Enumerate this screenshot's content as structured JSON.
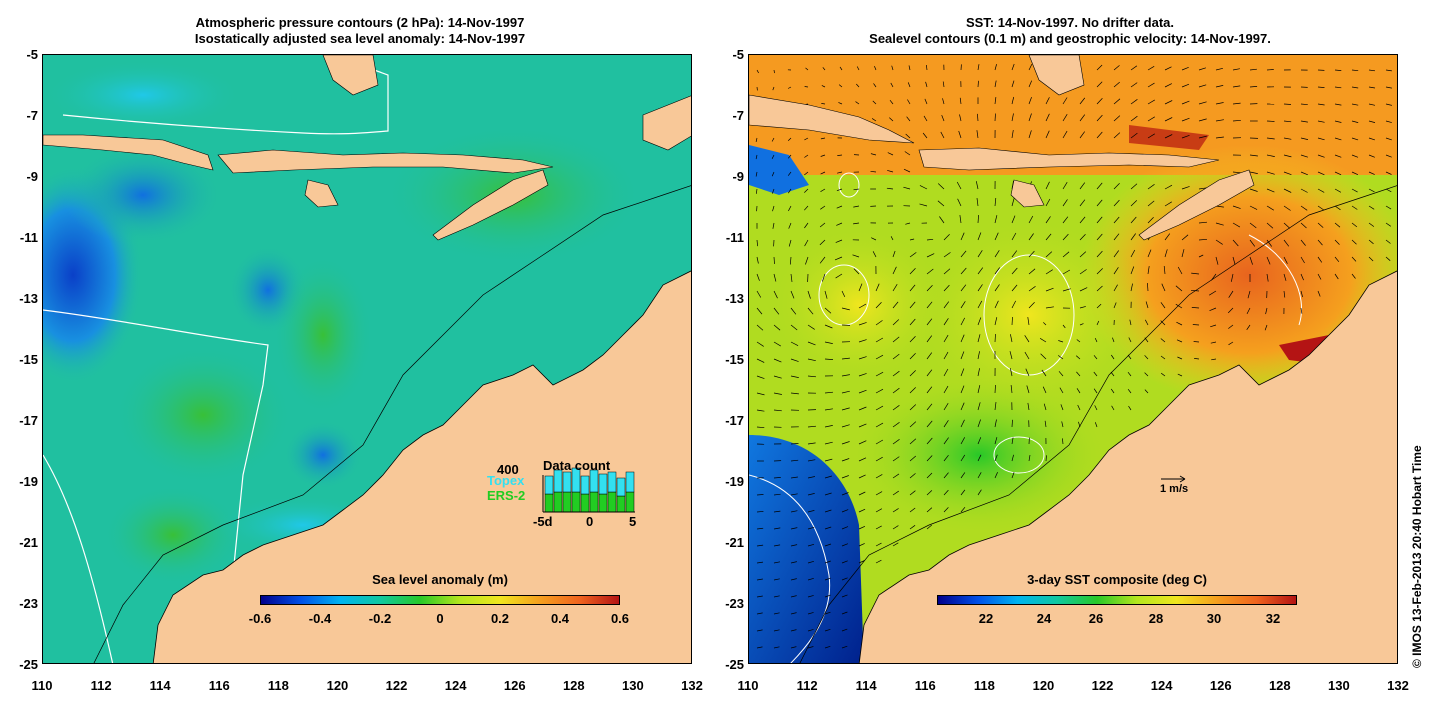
{
  "left_panel": {
    "title_line1": "Atmospheric pressure contours (2 hPa): 14-Nov-1997",
    "title_line2": "Isostatically adjusted sea level anomaly: 14-Nov-1997",
    "colorbar_title": "Sea level anomaly (m)",
    "colorbar_ticks": [
      "-0.6",
      "-0.4",
      "-0.2",
      "0",
      "0.2",
      "0.4",
      "0.6"
    ],
    "inset": {
      "title": "Data count",
      "max_label": "400",
      "topex_label": "Topex",
      "ers_label": "ERS-2",
      "x_ticks": [
        "-5d",
        "0",
        "5"
      ],
      "topex_color": "#33e0f0",
      "ers_color": "#22cc22"
    }
  },
  "right_panel": {
    "title_line1": "SST: 14-Nov-1997. No drifter data.",
    "title_line2": "Sealevel contours (0.1 m) and geostrophic velocity: 14-Nov-1997.",
    "colorbar_title": "3-day SST composite (deg C)",
    "colorbar_ticks": [
      "22",
      "24",
      "26",
      "28",
      "30",
      "32"
    ],
    "velocity_scale_label": "1 m/s"
  },
  "y_ticks": [
    "-5",
    "-7",
    "-9",
    "-11",
    "-13",
    "-15",
    "-17",
    "-19",
    "-21",
    "-23",
    "-25"
  ],
  "x_ticks": [
    "110",
    "112",
    "114",
    "116",
    "118",
    "120",
    "122",
    "124",
    "126",
    "128",
    "130",
    "132"
  ],
  "credit": "© IMOS 13-Feb-2013 20:40 Hobart Time",
  "colors": {
    "land": "#f8c898",
    "sla_base": "#20c0a0",
    "sst_base": "#b0dc20",
    "colormap": [
      "#00008c",
      "#0050e8",
      "#00b4f0",
      "#10c8a0",
      "#28c828",
      "#b4e61e",
      "#f0e61e",
      "#f5a01e",
      "#f0641e",
      "#b41414"
    ]
  }
}
